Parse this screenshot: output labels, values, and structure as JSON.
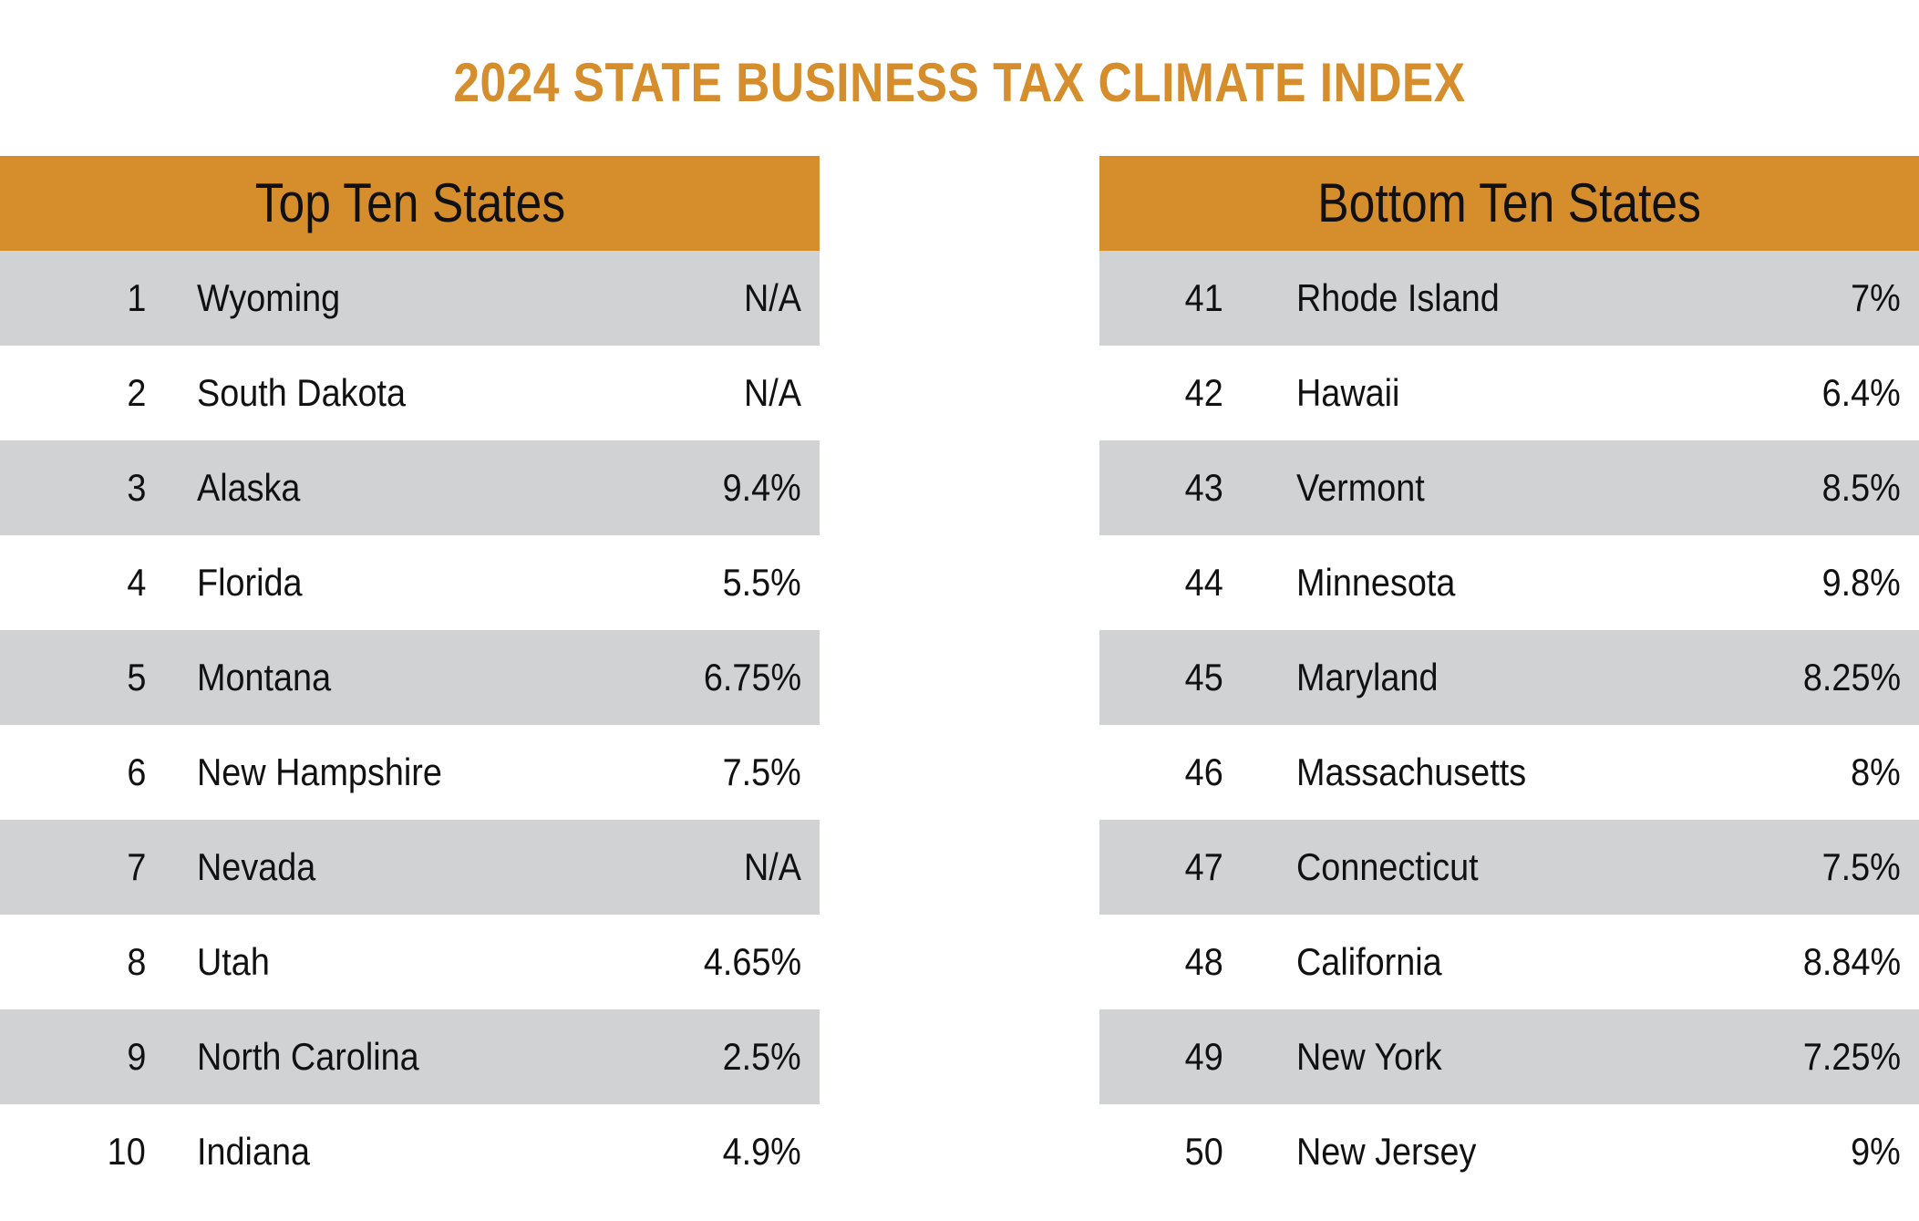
{
  "colors": {
    "accent": "#D68E2D",
    "header_fill": "#D68E2D",
    "row_shade": "#D1D2D4",
    "row_plain": "#FFFFFF",
    "text": "#111111"
  },
  "chart_data": {
    "type": "table",
    "title": "2024 STATE BUSINESS TAX CLIMATE INDEX",
    "tables": [
      {
        "header": "Top Ten States",
        "rows": [
          {
            "rank": "1",
            "state": "Wyoming",
            "value": "N/A"
          },
          {
            "rank": "2",
            "state": "South Dakota",
            "value": "N/A"
          },
          {
            "rank": "3",
            "state": "Alaska",
            "value": "9.4%"
          },
          {
            "rank": "4",
            "state": "Florida",
            "value": "5.5%"
          },
          {
            "rank": "5",
            "state": "Montana",
            "value": "6.75%"
          },
          {
            "rank": "6",
            "state": "New Hampshire",
            "value": "7.5%"
          },
          {
            "rank": "7",
            "state": "Nevada",
            "value": "N/A"
          },
          {
            "rank": "8",
            "state": "Utah",
            "value": "4.65%"
          },
          {
            "rank": "9",
            "state": "North Carolina",
            "value": "2.5%"
          },
          {
            "rank": "10",
            "state": "Indiana",
            "value": "4.9%"
          }
        ]
      },
      {
        "header": "Bottom Ten States",
        "rows": [
          {
            "rank": "41",
            "state": "Rhode Island",
            "value": "7%"
          },
          {
            "rank": "42",
            "state": "Hawaii",
            "value": "6.4%"
          },
          {
            "rank": "43",
            "state": "Vermont",
            "value": "8.5%"
          },
          {
            "rank": "44",
            "state": "Minnesota",
            "value": "9.8%"
          },
          {
            "rank": "45",
            "state": "Maryland",
            "value": "8.25%"
          },
          {
            "rank": "46",
            "state": "Massachusetts",
            "value": "8%"
          },
          {
            "rank": "47",
            "state": "Connecticut",
            "value": "7.5%"
          },
          {
            "rank": "48",
            "state": "California",
            "value": "8.84%"
          },
          {
            "rank": "49",
            "state": "New York",
            "value": "7.25%"
          },
          {
            "rank": "50",
            "state": "New Jersey",
            "value": "9%"
          }
        ]
      }
    ]
  }
}
